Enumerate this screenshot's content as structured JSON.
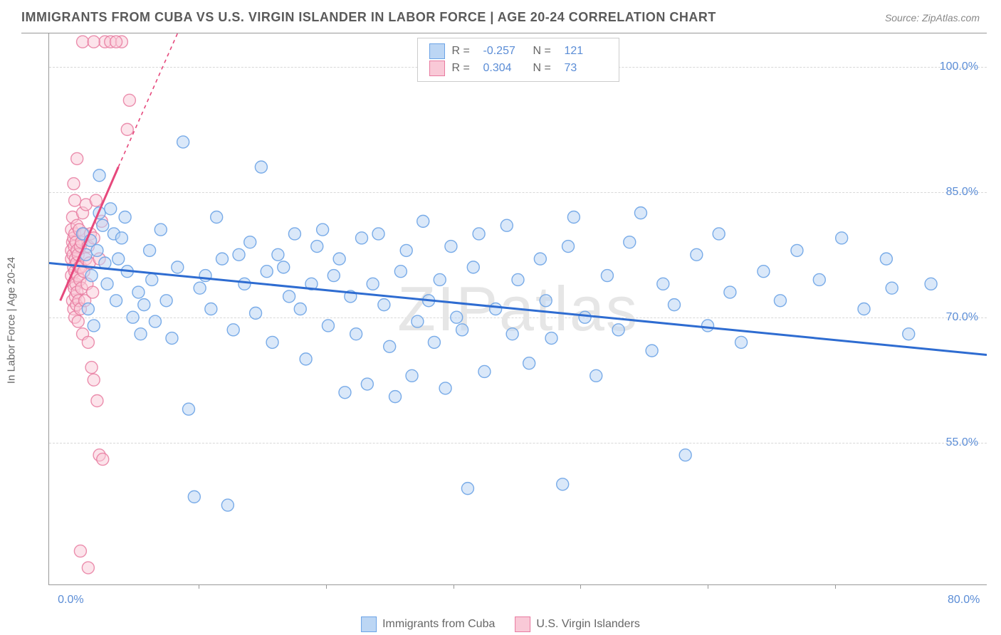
{
  "header": {
    "title": "IMMIGRANTS FROM CUBA VS U.S. VIRGIN ISLANDER IN LABOR FORCE | AGE 20-24 CORRELATION CHART",
    "source": "Source: ZipAtlas.com"
  },
  "axes": {
    "y_label": "In Labor Force | Age 20-24",
    "y_ticks": [
      55.0,
      70.0,
      85.0,
      100.0
    ],
    "y_tick_labels": [
      "55.0%",
      "70.0%",
      "85.0%",
      "100.0%"
    ],
    "y_min": 38.0,
    "y_max": 104.0,
    "x_ticks": [
      0.0,
      80.0
    ],
    "x_tick_labels": [
      "0.0%",
      "80.0%"
    ],
    "x_vticks": [
      11.4,
      22.8,
      34.2,
      45.6,
      57.0,
      68.4
    ],
    "x_min": -2.0,
    "x_max": 82.0
  },
  "legend_top": {
    "rows": [
      {
        "swatch_fill": "#bcd6f4",
        "swatch_border": "#6ba3e6",
        "r_label": "R =",
        "r_val": "-0.257",
        "n_label": "N =",
        "n_val": "121"
      },
      {
        "swatch_fill": "#f9c9d7",
        "swatch_border": "#e87ba0",
        "r_label": "R =",
        "r_val": "0.304",
        "n_label": "N =",
        "n_val": "73"
      }
    ]
  },
  "legend_bottom": {
    "items": [
      {
        "swatch_fill": "#bcd6f4",
        "swatch_border": "#6ba3e6",
        "label": "Immigrants from Cuba"
      },
      {
        "swatch_fill": "#f9c9d7",
        "swatch_border": "#e87ba0",
        "label": "U.S. Virgin Islanders"
      }
    ]
  },
  "watermark": "ZIPatlas",
  "series": {
    "blue": {
      "marker_fill": "#bcd6f4",
      "marker_fill_opacity": 0.55,
      "marker_stroke": "#6ba3e6",
      "marker_stroke_opacity": 0.9,
      "marker_radius": 8.5,
      "trend_color": "#2e6cd1",
      "trend_width": 3,
      "trend": {
        "x1": -2,
        "y1": 76.5,
        "x2": 82,
        "y2": 65.5
      },
      "points": [
        [
          1.0,
          80.0
        ],
        [
          1.3,
          77.5
        ],
        [
          1.5,
          71.0
        ],
        [
          1.7,
          79.2
        ],
        [
          1.8,
          75.0
        ],
        [
          2.0,
          69.0
        ],
        [
          2.3,
          78.0
        ],
        [
          2.5,
          87.0
        ],
        [
          2.5,
          82.5
        ],
        [
          2.8,
          81.0
        ],
        [
          3.0,
          76.5
        ],
        [
          3.2,
          74.0
        ],
        [
          3.5,
          83.0
        ],
        [
          3.8,
          80.0
        ],
        [
          4.0,
          72.0
        ],
        [
          4.2,
          77.0
        ],
        [
          4.5,
          79.5
        ],
        [
          4.8,
          82.0
        ],
        [
          5.0,
          75.5
        ],
        [
          5.5,
          70.0
        ],
        [
          6.0,
          73.0
        ],
        [
          6.2,
          68.0
        ],
        [
          6.5,
          71.5
        ],
        [
          7.0,
          78.0
        ],
        [
          7.2,
          74.5
        ],
        [
          7.5,
          69.5
        ],
        [
          8.0,
          80.5
        ],
        [
          8.5,
          72.0
        ],
        [
          9.0,
          67.5
        ],
        [
          9.5,
          76.0
        ],
        [
          10.0,
          91.0
        ],
        [
          10.5,
          59.0
        ],
        [
          11.0,
          48.5
        ],
        [
          11.5,
          73.5
        ],
        [
          12.0,
          75.0
        ],
        [
          12.5,
          71.0
        ],
        [
          13.0,
          82.0
        ],
        [
          13.5,
          77.0
        ],
        [
          14.0,
          47.5
        ],
        [
          14.5,
          68.5
        ],
        [
          15.0,
          77.5
        ],
        [
          15.5,
          74.0
        ],
        [
          16.0,
          79.0
        ],
        [
          16.5,
          70.5
        ],
        [
          17.0,
          88.0
        ],
        [
          17.5,
          75.5
        ],
        [
          18.0,
          67.0
        ],
        [
          18.5,
          77.5
        ],
        [
          19.0,
          76.0
        ],
        [
          19.5,
          72.5
        ],
        [
          20.0,
          80.0
        ],
        [
          20.5,
          71.0
        ],
        [
          21.0,
          65.0
        ],
        [
          21.5,
          74.0
        ],
        [
          22.0,
          78.5
        ],
        [
          22.5,
          80.5
        ],
        [
          23.0,
          69.0
        ],
        [
          23.5,
          75.0
        ],
        [
          24.0,
          77.0
        ],
        [
          24.5,
          61.0
        ],
        [
          25.0,
          72.5
        ],
        [
          25.5,
          68.0
        ],
        [
          26.0,
          79.5
        ],
        [
          26.5,
          62.0
        ],
        [
          27.0,
          74.0
        ],
        [
          27.5,
          80.0
        ],
        [
          28.0,
          71.5
        ],
        [
          28.5,
          66.5
        ],
        [
          29.0,
          60.5
        ],
        [
          29.5,
          75.5
        ],
        [
          30.0,
          78.0
        ],
        [
          30.5,
          63.0
        ],
        [
          31.0,
          69.5
        ],
        [
          31.5,
          81.5
        ],
        [
          32.0,
          72.0
        ],
        [
          32.5,
          67.0
        ],
        [
          33.0,
          74.5
        ],
        [
          33.5,
          61.5
        ],
        [
          34.0,
          78.5
        ],
        [
          34.5,
          70.0
        ],
        [
          35.0,
          68.5
        ],
        [
          35.5,
          49.5
        ],
        [
          36.0,
          76.0
        ],
        [
          36.5,
          80.0
        ],
        [
          37.0,
          63.5
        ],
        [
          38.0,
          71.0
        ],
        [
          39.0,
          81.0
        ],
        [
          39.5,
          68.0
        ],
        [
          40.0,
          74.5
        ],
        [
          41.0,
          64.5
        ],
        [
          42.0,
          77.0
        ],
        [
          42.5,
          72.0
        ],
        [
          43.0,
          67.5
        ],
        [
          44.0,
          50.0
        ],
        [
          44.5,
          78.5
        ],
        [
          45.0,
          82.0
        ],
        [
          46.0,
          70.0
        ],
        [
          47.0,
          63.0
        ],
        [
          48.0,
          75.0
        ],
        [
          49.0,
          68.5
        ],
        [
          50.0,
          79.0
        ],
        [
          51.0,
          82.5
        ],
        [
          52.0,
          66.0
        ],
        [
          53.0,
          74.0
        ],
        [
          54.0,
          71.5
        ],
        [
          55.0,
          53.5
        ],
        [
          56.0,
          77.5
        ],
        [
          57.0,
          69.0
        ],
        [
          58.0,
          80.0
        ],
        [
          59.0,
          73.0
        ],
        [
          60.0,
          67.0
        ],
        [
          62.0,
          75.5
        ],
        [
          63.5,
          72.0
        ],
        [
          65.0,
          78.0
        ],
        [
          67.0,
          74.5
        ],
        [
          69.0,
          79.5
        ],
        [
          71.0,
          71.0
        ],
        [
          73.0,
          77.0
        ],
        [
          73.5,
          73.5
        ],
        [
          75.0,
          68.0
        ],
        [
          77.0,
          74.0
        ]
      ]
    },
    "pink": {
      "marker_fill": "#f9c9d7",
      "marker_fill_opacity": 0.5,
      "marker_stroke": "#e87ba0",
      "marker_stroke_opacity": 0.85,
      "marker_radius": 8.5,
      "trend_color": "#e6487c",
      "trend_width": 3,
      "trend_solid": {
        "x1": -1.0,
        "y1": 72.0,
        "x2": 4.2,
        "y2": 88.0
      },
      "trend_dashed": {
        "x1": 4.2,
        "y1": 88.0,
        "x2": 9.5,
        "y2": 104.0
      },
      "points": [
        [
          0.0,
          77.0
        ],
        [
          0.0,
          80.5
        ],
        [
          0.0,
          78.0
        ],
        [
          0.0,
          75.0
        ],
        [
          0.1,
          72.0
        ],
        [
          0.1,
          79.0
        ],
        [
          0.1,
          82.0
        ],
        [
          0.15,
          74.0
        ],
        [
          0.15,
          77.5
        ],
        [
          0.2,
          71.0
        ],
        [
          0.2,
          76.0
        ],
        [
          0.2,
          79.5
        ],
        [
          0.25,
          73.5
        ],
        [
          0.25,
          78.5
        ],
        [
          0.3,
          70.0
        ],
        [
          0.3,
          75.5
        ],
        [
          0.3,
          80.0
        ],
        [
          0.35,
          72.5
        ],
        [
          0.35,
          77.0
        ],
        [
          0.4,
          74.0
        ],
        [
          0.4,
          79.0
        ],
        [
          0.45,
          71.5
        ],
        [
          0.45,
          76.5
        ],
        [
          0.5,
          73.0
        ],
        [
          0.5,
          78.0
        ],
        [
          0.5,
          81.0
        ],
        [
          0.55,
          75.0
        ],
        [
          0.6,
          69.5
        ],
        [
          0.6,
          77.5
        ],
        [
          0.65,
          72.0
        ],
        [
          0.7,
          76.0
        ],
        [
          0.7,
          80.5
        ],
        [
          0.75,
          74.5
        ],
        [
          0.8,
          78.5
        ],
        [
          0.8,
          71.0
        ],
        [
          0.85,
          76.0
        ],
        [
          0.9,
          73.5
        ],
        [
          0.9,
          79.0
        ],
        [
          1.0,
          68.0
        ],
        [
          1.0,
          82.5
        ],
        [
          1.1,
          75.5
        ],
        [
          1.1,
          80.0
        ],
        [
          1.2,
          72.0
        ],
        [
          1.3,
          77.0
        ],
        [
          1.3,
          83.5
        ],
        [
          1.4,
          74.0
        ],
        [
          1.5,
          78.5
        ],
        [
          1.5,
          67.0
        ],
        [
          1.6,
          76.5
        ],
        [
          1.7,
          80.0
        ],
        [
          1.8,
          64.0
        ],
        [
          1.9,
          73.0
        ],
        [
          2.0,
          79.5
        ],
        [
          2.0,
          62.5
        ],
        [
          2.2,
          84.0
        ],
        [
          2.3,
          60.0
        ],
        [
          2.5,
          77.0
        ],
        [
          2.5,
          53.5
        ],
        [
          2.7,
          81.5
        ],
        [
          2.8,
          53.0
        ],
        [
          0.5,
          89.0
        ],
        [
          0.2,
          86.0
        ],
        [
          0.3,
          84.0
        ],
        [
          3.0,
          103.0
        ],
        [
          3.5,
          103.0
        ],
        [
          1.0,
          103.0
        ],
        [
          2.0,
          103.0
        ],
        [
          4.5,
          103.0
        ],
        [
          5.0,
          92.5
        ],
        [
          5.2,
          96.0
        ],
        [
          4.0,
          103.0
        ],
        [
          1.5,
          40.0
        ],
        [
          0.8,
          42.0
        ]
      ]
    }
  },
  "style": {
    "background": "#ffffff",
    "grid_color": "#d8d8d8",
    "axis_color": "#999999",
    "tick_label_color": "#5b8dd6",
    "title_color": "#5a5a5a",
    "watermark_color": "#e6e6e6"
  }
}
